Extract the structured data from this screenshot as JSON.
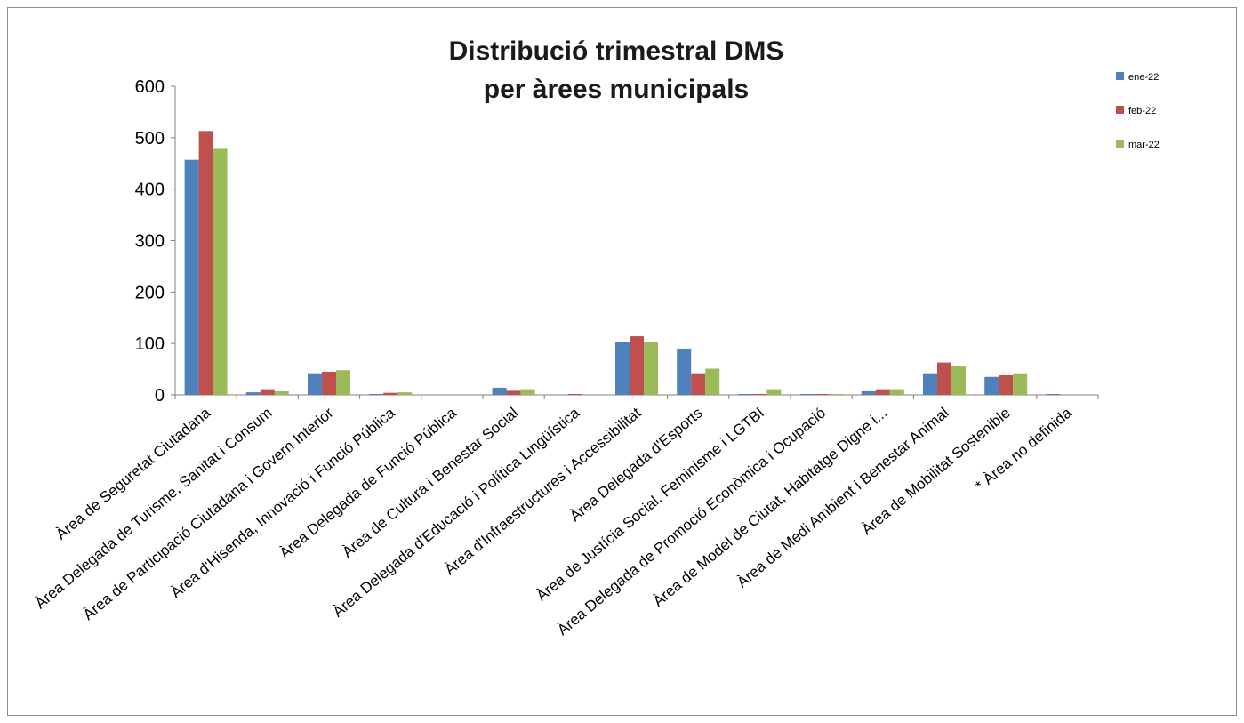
{
  "chart_data": {
    "type": "bar",
    "title": [
      "Distribució trimestral DMS",
      "per àrees municipals"
    ],
    "xlabel": "",
    "ylabel": "",
    "ylim": [
      0,
      600
    ],
    "yticks": [
      0,
      100,
      200,
      300,
      400,
      500,
      600
    ],
    "grid": false,
    "legend_position": "top-right",
    "categories": [
      "Àrea de Seguretat Ciutadana",
      "Àrea Delegada de Turisme, Sanitat  i Consum",
      "Àrea de Participació Ciutadana  i Govern Interior",
      "Àrea d'Hisenda, Innovació  i Funció Pública",
      "Àrea Delegada de Funció Pública",
      "Àrea de Cultura i Benestar Social",
      "Àrea Delegada d'Educació i Política Lingüística",
      "Àrea d'Infraestructures i Accessibilitat",
      "Àrea Delegada d'Esports",
      "Àrea de Justícia Social, Feminisme  i LGTBI",
      "Àrea Delegada de Promoció Econòmica i Ocupació",
      "Àrea de Model de Ciutat,  Habitatge  Digne i...",
      "Àrea de Medi Ambient i Benestar Animal",
      "Àrea de Mobilitat  Sostenible",
      "* Àrea no definida"
    ],
    "series": [
      {
        "name": "ene-22",
        "color": "#4f81bd",
        "values": [
          457,
          5,
          42,
          1,
          0,
          14,
          0,
          102,
          90,
          1,
          1,
          7,
          42,
          35,
          1
        ]
      },
      {
        "name": "feb-22",
        "color": "#c0504d",
        "values": [
          513,
          11,
          45,
          4,
          0,
          8,
          1,
          114,
          42,
          1,
          1,
          11,
          63,
          38,
          0
        ]
      },
      {
        "name": "mar-22",
        "color": "#9bbb59",
        "values": [
          480,
          7,
          48,
          5,
          0,
          11,
          0,
          102,
          51,
          11,
          1,
          11,
          56,
          42,
          0
        ]
      }
    ]
  }
}
